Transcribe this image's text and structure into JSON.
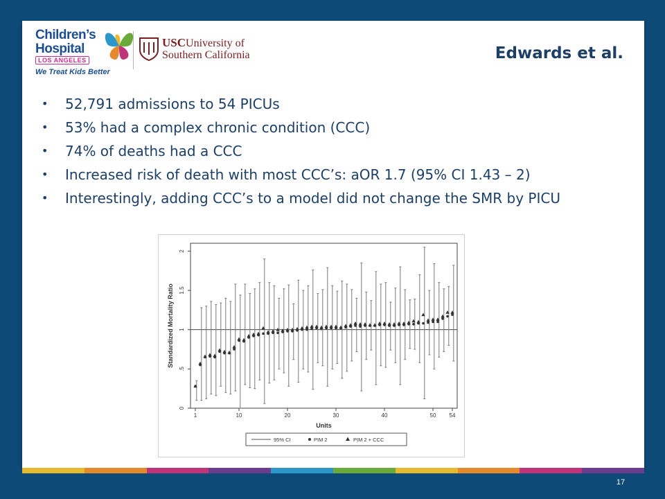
{
  "slide": {
    "title": "Edwards et al.",
    "page_number": "17",
    "bullets": [
      "52,791 admissions to 54 PICUs",
      "53% had a complex chronic condition (CCC)",
      "74% of deaths had a CCC",
      "Increased risk of death with most CCC’s: aOR 1.7 (95% CI 1.43 – 2)",
      "Interestingly, adding CCC’s to a model did not change the SMR by PICU"
    ],
    "colors": {
      "frame": "#0d4a78",
      "title": "#1d3f66",
      "strip": [
        "#e6b92f",
        "#e58a2c",
        "#c0357a",
        "#6a3d8f",
        "#2c97c9",
        "#6aaa3a",
        "#e6b92f",
        "#e58a2c",
        "#c0357a",
        "#6a3d8f"
      ]
    }
  },
  "logos": {
    "chla_line1": "Children’s",
    "chla_line2": "Hospital",
    "chla_line3": "LOS ANGELES",
    "chla_tagline": "We Treat Kids Better",
    "usc_line1_bold": "USC",
    "usc_line1": "University of",
    "usc_line2": "Southern California"
  },
  "chart_data": {
    "type": "scatter",
    "xlabel": "Units",
    "ylabel": "Standardized Mortality Ratio",
    "x_ticks": [
      "1",
      "10",
      "20",
      "30",
      "40",
      "50",
      "54"
    ],
    "y_ticks": [
      "0",
      ".5",
      "1",
      "1.5",
      "2"
    ],
    "xlim": [
      0,
      55
    ],
    "ylim": [
      0,
      2.1
    ],
    "reference_line": 1,
    "legend": [
      "95% CI",
      "PIM 2",
      "PIM 2 + CCC"
    ],
    "legend_position": "bottom",
    "units": [
      1,
      2,
      3,
      4,
      5,
      6,
      7,
      8,
      9,
      10,
      11,
      12,
      13,
      14,
      15,
      16,
      17,
      18,
      19,
      20,
      21,
      22,
      23,
      24,
      25,
      26,
      27,
      28,
      29,
      30,
      31,
      32,
      33,
      34,
      35,
      36,
      37,
      38,
      39,
      40,
      41,
      42,
      43,
      44,
      45,
      46,
      47,
      48,
      49,
      50,
      51,
      52,
      53,
      54
    ],
    "series": [
      {
        "name": "PIM 2",
        "values": [
          0.28,
          0.55,
          0.65,
          0.66,
          0.65,
          0.72,
          0.7,
          0.7,
          0.75,
          0.86,
          0.85,
          0.9,
          0.92,
          0.93,
          0.95,
          0.95,
          0.96,
          0.96,
          0.97,
          0.98,
          0.98,
          0.99,
          1.0,
          1.0,
          1.01,
          1.02,
          1.01,
          1.02,
          1.02,
          1.02,
          1.02,
          1.03,
          1.04,
          1.05,
          1.04,
          1.05,
          1.05,
          1.05,
          1.06,
          1.06,
          1.05,
          1.05,
          1.06,
          1.06,
          1.07,
          1.07,
          1.08,
          1.08,
          1.09,
          1.1,
          1.1,
          1.14,
          1.17,
          1.19
        ]
      },
      {
        "name": "PIM 2 + CCC",
        "values": [
          0.28,
          0.57,
          0.66,
          0.68,
          0.67,
          0.74,
          0.72,
          0.71,
          0.78,
          0.88,
          0.87,
          0.92,
          0.94,
          0.95,
          1.02,
          0.97,
          0.98,
          1.0,
          0.99,
          1.0,
          1.0,
          1.01,
          1.02,
          1.03,
          1.04,
          1.04,
          1.03,
          1.04,
          1.04,
          1.04,
          1.03,
          1.05,
          1.06,
          1.08,
          1.07,
          1.07,
          1.06,
          1.06,
          1.08,
          1.08,
          1.07,
          1.07,
          1.08,
          1.08,
          1.09,
          1.11,
          1.1,
          1.19,
          1.12,
          1.13,
          1.13,
          1.17,
          1.22,
          1.22
        ]
      },
      {
        "name": "95% CI lower",
        "values": [
          0.1,
          0.1,
          0.12,
          0.18,
          0.16,
          0.28,
          0.2,
          0.18,
          0.22,
          0.0,
          0.3,
          0.26,
          0.25,
          0.36,
          0.06,
          0.32,
          0.36,
          0.5,
          0.45,
          0.28,
          0.62,
          0.33,
          0.5,
          0.46,
          0.24,
          0.58,
          0.54,
          0.28,
          0.5,
          0.57,
          0.38,
          0.47,
          0.6,
          0.72,
          0.22,
          0.62,
          0.74,
          0.3,
          0.54,
          0.52,
          0.74,
          0.58,
          0.3,
          0.62,
          0.76,
          0.75,
          0.58,
          0.12,
          0.68,
          0.5,
          0.65,
          0.72,
          0.8,
          0.6
        ]
      },
      {
        "name": "95% CI upper",
        "values": [
          0.35,
          1.28,
          1.3,
          1.36,
          1.32,
          1.34,
          1.4,
          1.36,
          1.58,
          1.44,
          1.58,
          1.46,
          1.52,
          1.6,
          1.9,
          1.6,
          1.56,
          1.4,
          1.52,
          1.57,
          1.33,
          1.63,
          1.5,
          1.56,
          1.76,
          1.46,
          1.51,
          1.79,
          1.56,
          1.49,
          1.62,
          1.58,
          1.51,
          1.4,
          1.85,
          1.48,
          1.37,
          1.74,
          1.58,
          1.6,
          1.35,
          1.53,
          1.8,
          1.51,
          1.38,
          1.39,
          1.7,
          2.05,
          1.5,
          1.84,
          1.6,
          1.52,
          1.55,
          1.82
        ]
      }
    ]
  }
}
